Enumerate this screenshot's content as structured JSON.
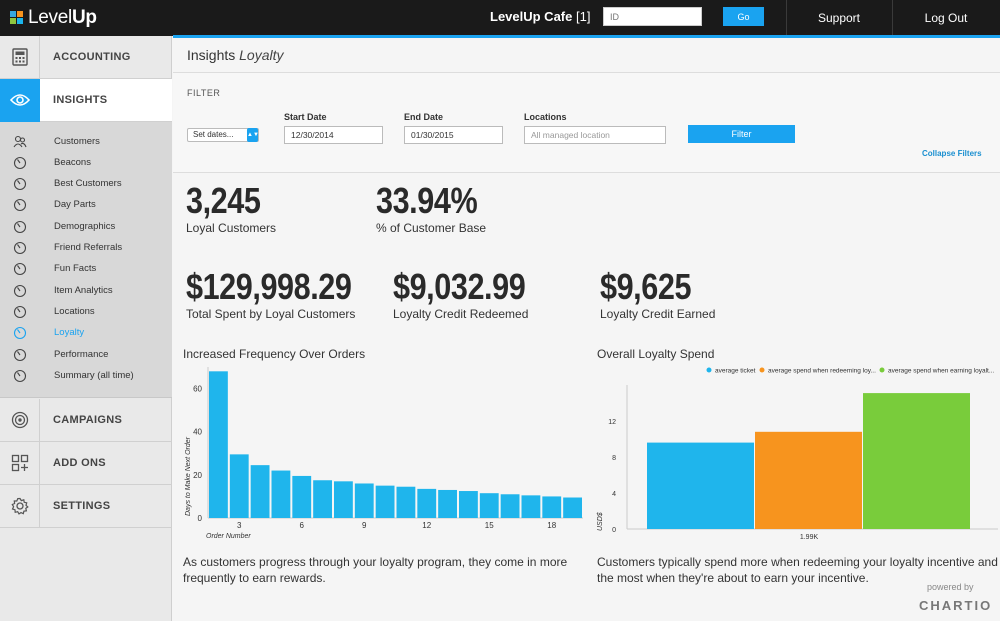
{
  "topbar": {
    "logo_light": "Level",
    "logo_bold": "Up",
    "cafe_name": "LevelUp Cafe",
    "cafe_count": "[1]",
    "id_placeholder": "ID",
    "go_label": "Go",
    "support_label": "Support",
    "logout_label": "Log Out"
  },
  "sidebar": {
    "items": [
      {
        "label": "ACCOUNTING",
        "icon": "calculator-icon"
      },
      {
        "label": "INSIGHTS",
        "icon": "eye-icon"
      },
      {
        "label": "CAMPAIGNS",
        "icon": "target-icon"
      },
      {
        "label": "ADD ONS",
        "icon": "grid-icon"
      },
      {
        "label": "SETTINGS",
        "icon": "gear-icon"
      }
    ],
    "subitems": [
      "Customers",
      "Beacons",
      "Best Customers",
      "Day Parts",
      "Demographics",
      "Friend Referrals",
      "Fun Facts",
      "Item Analytics",
      "Locations",
      "Loyalty",
      "Performance",
      "Summary (all time)"
    ],
    "active_sub": "Loyalty"
  },
  "page": {
    "title": "Insights",
    "subtitle": "Loyalty"
  },
  "filter": {
    "heading": "FILTER",
    "select_value": "Set dates...",
    "start_label": "Start Date",
    "start_value": "12/30/2014",
    "end_label": "End Date",
    "end_value": "01/30/2015",
    "locations_label": "Locations",
    "locations_placeholder": "All managed location",
    "filter_button": "Filter",
    "collapse_link": "Collapse Filters"
  },
  "metrics": [
    {
      "value": "3,245",
      "label": "Loyal Customers"
    },
    {
      "value": "33.94%",
      "label": "% of Customer Base"
    },
    {
      "value": "$129,998.29",
      "label": "Total Spent by Loyal Customers"
    },
    {
      "value": "$9,032.99",
      "label": "Loyalty Credit Redeemed"
    },
    {
      "value": "$9,625",
      "label": "Loyalty Credit Earned"
    }
  ],
  "charts": {
    "left_title": "Increased Frequency Over Orders",
    "left_caption_1": "As customers progress through your loyalty program, they come in more",
    "left_caption_2": "frequently to earn rewards.",
    "right_title": "Overall Loyalty Spend",
    "right_caption_1": "Customers typically spend more when redeeming your loyalty incentive and",
    "right_caption_2": "the most when they're about to earn your incentive."
  },
  "chart_data": [
    {
      "type": "bar",
      "x": [
        2,
        3,
        4,
        5,
        6,
        7,
        8,
        9,
        10,
        11,
        12,
        13,
        14,
        15,
        16,
        17,
        18,
        19
      ],
      "values": [
        68,
        29.5,
        24.5,
        22,
        19.5,
        17.5,
        17,
        16,
        15,
        14.5,
        13.5,
        13,
        12.5,
        11.5,
        11,
        10.5,
        10,
        9.5
      ],
      "xticks": [
        3,
        6,
        9,
        12,
        15,
        18
      ],
      "yticks": [
        0,
        20,
        40,
        60
      ],
      "ylim": [
        0,
        70
      ],
      "xlabel": "Order Number",
      "ylabel": "Days to Make Next Order",
      "color": "#1fb5ec"
    },
    {
      "type": "bar",
      "categories": [
        "1.99K"
      ],
      "series": [
        {
          "name": "average ticket",
          "values": [
            9.6
          ],
          "color": "#1fb5ec"
        },
        {
          "name": "average spend when redeeming loy...",
          "values": [
            10.8
          ],
          "color": "#f7941e"
        },
        {
          "name": "average spend when earning loyalt...",
          "values": [
            15.1
          ],
          "color": "#79cc3b"
        }
      ],
      "yticks": [
        0,
        4,
        8,
        12
      ],
      "ylim": [
        0,
        16
      ],
      "ylabel": "USD$",
      "legend": "top-right"
    }
  ],
  "footer": {
    "powered_by": "powered by",
    "brand": "CHARTIO"
  }
}
